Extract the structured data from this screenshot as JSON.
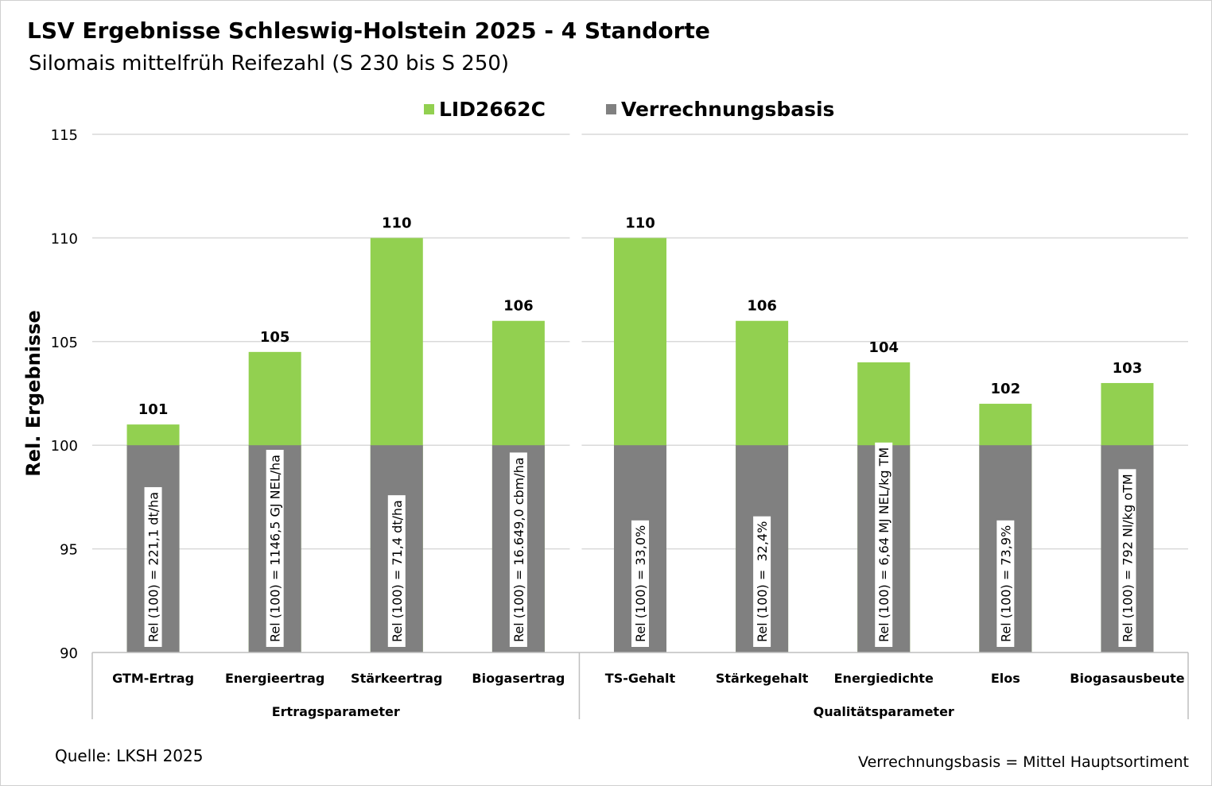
{
  "chart_data": {
    "type": "bar",
    "title": "LSV Ergebnisse Schleswig-Holstein 2025 - 4 Standorte",
    "subtitle": "Silomais mittelfrüh Reifezahl (S 230 bis S 250)",
    "ylabel": "Rel. Ergebnisse",
    "groups": [
      {
        "name": "Ertragsparameter",
        "categories": [
          "GTM-Ertrag",
          "Energieertrag",
          "Stärkeertrag",
          "Biogasertrag"
        ]
      },
      {
        "name": "Qualitätsparameter",
        "categories": [
          "TS-Gehalt",
          "Stärkegehalt",
          "Energiedichte",
          "Elos",
          "Biogasausbeute"
        ]
      }
    ],
    "series": [
      {
        "name": "LID2662C",
        "color": "#92d050",
        "values": [
          101,
          104.5,
          110,
          106,
          110,
          106,
          104,
          102,
          103
        ],
        "value_labels": [
          "101",
          "105",
          "110",
          "106",
          "110",
          "106",
          "104",
          "102",
          "103"
        ]
      },
      {
        "name": "Verrechnungsbasis",
        "color": "#808080",
        "values": [
          100,
          100,
          100,
          100,
          100,
          100,
          100,
          100,
          100
        ],
        "bar_labels": [
          "Rel (100) = 221,1 dt/ha",
          "Rel (100) = 1146,5 GJ NEL/ha",
          "Rel (100) = 71,4 dt/ha",
          "Rel (100) = 16.649,0 cbm/ha",
          "Rel (100) = 33,0%",
          "Rel (100) =  32,4%",
          "Rel (100) = 6,64 MJ NEL/kg TM",
          "Rel (100) = 73,9%",
          "Rel (100) = 792 Nl/kg oTM"
        ]
      }
    ],
    "ylim": [
      90,
      115
    ],
    "yticks": [
      90,
      95,
      100,
      105,
      110,
      115
    ],
    "grid": true,
    "legend": "top",
    "source": "Quelle: LKSH 2025",
    "note": "Verrechnungsbasis = Mittel Hauptsortiment"
  }
}
